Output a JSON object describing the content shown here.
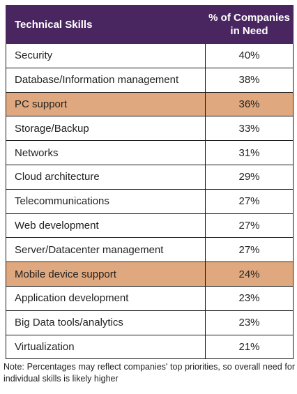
{
  "chart_data": {
    "type": "table",
    "columns": [
      "Technical Skills",
      "% of Companies in Need"
    ],
    "header": {
      "skill_label": "Technical Skills",
      "pct_label_line1": "% of Companies",
      "pct_label_line2": "in Need"
    },
    "rows": [
      {
        "skill": "Security",
        "value": "40%",
        "highlight": false
      },
      {
        "skill": "Database/Information management",
        "value": "38%",
        "highlight": false
      },
      {
        "skill": "PC support",
        "value": "36%",
        "highlight": true
      },
      {
        "skill": "Storage/Backup",
        "value": "33%",
        "highlight": false
      },
      {
        "skill": "Networks",
        "value": "31%",
        "highlight": false
      },
      {
        "skill": "Cloud architecture",
        "value": "29%",
        "highlight": false
      },
      {
        "skill": "Telecommunications",
        "value": "27%",
        "highlight": false
      },
      {
        "skill": "Web development",
        "value": "27%",
        "highlight": false
      },
      {
        "skill": "Server/Datacenter management",
        "value": "27%",
        "highlight": false
      },
      {
        "skill": "Mobile device support",
        "value": "24%",
        "highlight": true
      },
      {
        "skill": "Application development",
        "value": "23%",
        "highlight": false
      },
      {
        "skill": "Big Data tools/analytics",
        "value": "23%",
        "highlight": false
      },
      {
        "skill": "Virtualization",
        "value": "21%",
        "highlight": false
      }
    ]
  },
  "colors": {
    "header_bg": "#4a2660",
    "highlight_bg": "#e0a87e"
  },
  "note": "Note: Percentages may reflect companies' top priorities, so overall need for individual skills is likely higher"
}
